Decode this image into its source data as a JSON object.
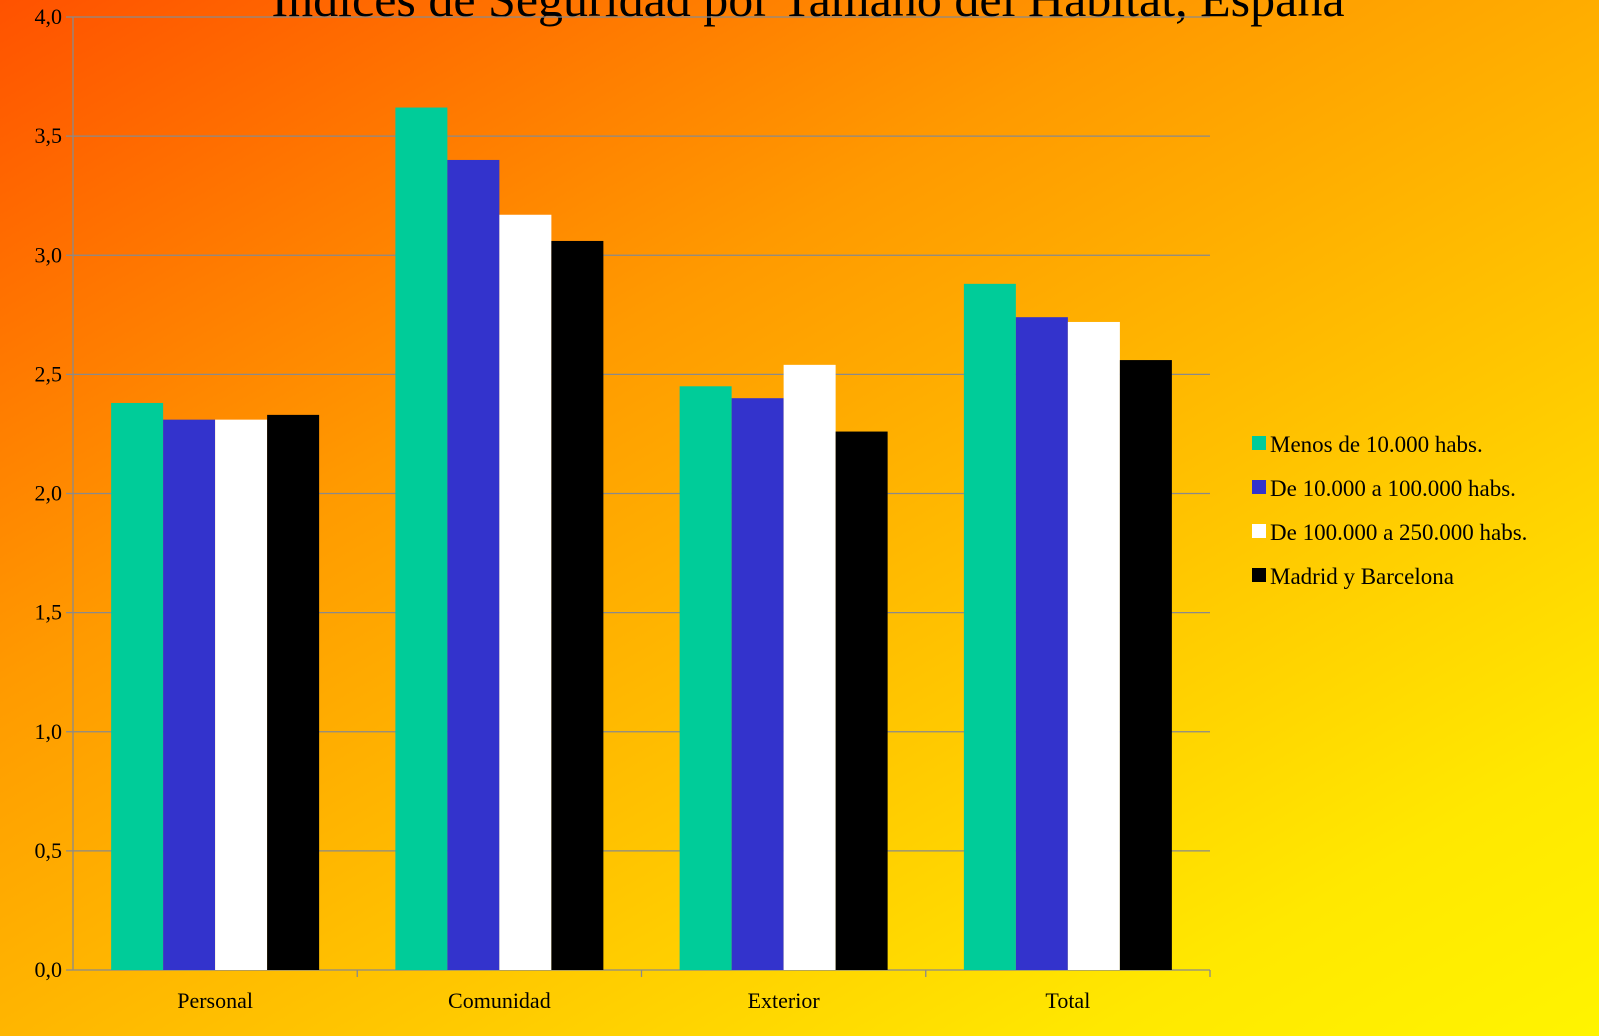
{
  "chart_data": {
    "type": "bar",
    "title": "Índices de Seguridad por Tamaño del Hábitat, España",
    "categories": [
      "Personal",
      "Comunidad",
      "Exterior",
      "Total"
    ],
    "series": [
      {
        "name": "Menos de 10.000 habs.",
        "color": "#00cc99",
        "values": [
          2.38,
          3.62,
          2.45,
          2.88
        ]
      },
      {
        "name": "De 10.000 a 100.000 habs.",
        "color": "#3333cc",
        "values": [
          2.31,
          3.4,
          2.4,
          2.74
        ]
      },
      {
        "name": "De 100.000 a 250.000 habs.",
        "color": "#ffffff",
        "values": [
          2.31,
          3.17,
          2.54,
          2.72
        ]
      },
      {
        "name": "Madrid y Barcelona",
        "color": "#000000",
        "values": [
          2.33,
          3.06,
          2.26,
          2.56
        ]
      }
    ],
    "ylim": [
      0,
      4
    ],
    "yticks": [
      "0,0",
      "0,5",
      "1,0",
      "1,5",
      "2,0",
      "2,5",
      "3,0",
      "3,5",
      "4,0"
    ],
    "ytick_values": [
      0,
      0.5,
      1,
      1.5,
      2,
      2.5,
      3,
      3.5,
      4
    ],
    "grid": true,
    "legend_position": "right",
    "xlabel": "",
    "ylabel": ""
  }
}
